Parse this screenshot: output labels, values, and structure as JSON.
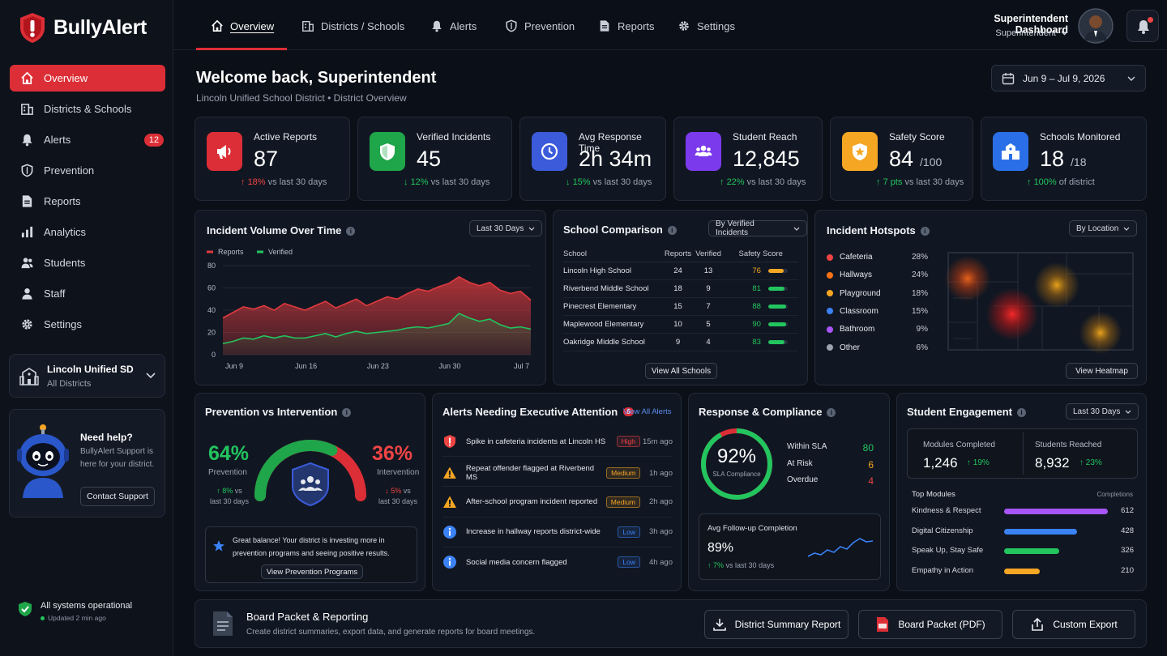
{
  "app": {
    "name": "BullyAlert"
  },
  "sidebar": {
    "items": [
      {
        "label": "Overview",
        "icon": "home-icon"
      },
      {
        "label": "Districts & Schools",
        "icon": "building-icon"
      },
      {
        "label": "Alerts",
        "icon": "bell-icon",
        "badge": "12"
      },
      {
        "label": "Prevention",
        "icon": "shield-icon"
      },
      {
        "label": "Reports",
        "icon": "document-icon"
      },
      {
        "label": "Analytics",
        "icon": "bar-chart-icon"
      },
      {
        "label": "Students",
        "icon": "users-icon"
      },
      {
        "label": "Staff",
        "icon": "user-icon"
      },
      {
        "label": "Settings",
        "icon": "gear-icon"
      }
    ],
    "district": {
      "name": "Lincoln Unified SD",
      "sub": "All Districts"
    },
    "help": {
      "title": "Need help?",
      "text1": "BullyAlert Support is",
      "text2": "here for your district.",
      "button": "Contact Support"
    },
    "status": {
      "text": "All systems operational",
      "updated": "Updated 2 min ago"
    }
  },
  "topnav": {
    "tabs": [
      {
        "label": "Overview",
        "icon": "home-icon"
      },
      {
        "label": "Districts / Schools",
        "icon": "building-icon"
      },
      {
        "label": "Alerts",
        "icon": "bell-icon"
      },
      {
        "label": "Prevention",
        "icon": "shield-icon"
      },
      {
        "label": "Reports",
        "icon": "document-icon"
      },
      {
        "label": "Settings",
        "icon": "gear-icon"
      }
    ],
    "user_title": "Superintendent Dashboard",
    "user_role": "Superintendent"
  },
  "header": {
    "title": "Welcome back, Superintendent",
    "subtitle": "Lincoln Unified School District • District Overview",
    "date_range": "Jun 9 – Jul 9, 2026"
  },
  "kpis": [
    {
      "label": "Active Reports",
      "value": "87",
      "suffix": "",
      "change": "18%",
      "dir": "up",
      "note": "vs last 30 days",
      "color": "#dc2e36"
    },
    {
      "label": "Verified Incidents",
      "value": "45",
      "suffix": "",
      "change": "12%",
      "dir": "down",
      "note": "vs last 30 days",
      "color": "#1fa64a"
    },
    {
      "label": "Avg Response Time",
      "value": "2h 34m",
      "suffix": "",
      "change": "15%",
      "dir": "down",
      "note": "vs last 30 days",
      "color": "#3b5bdb"
    },
    {
      "label": "Student Reach",
      "value": "12,845",
      "suffix": "",
      "change": "22%",
      "dir": "up",
      "note": "vs last 30 days",
      "color": "#7c3aed"
    },
    {
      "label": "Safety Score",
      "value": "84",
      "suffix": "/100",
      "change": "7 pts",
      "dir": "up",
      "note": "vs last 30 days",
      "color": "#f5a623"
    },
    {
      "label": "Schools Monitored",
      "value": "18",
      "suffix": "/18",
      "change": "100%",
      "dir": "up",
      "note": "of district",
      "color": "#2b6fe8"
    }
  ],
  "incident_volume": {
    "title": "Incident Volume Over Time",
    "range": "Last 30 Days"
  },
  "chart_data": {
    "type": "area",
    "x": [
      "Jun 9",
      "Jun 10",
      "Jun 11",
      "Jun 12",
      "Jun 13",
      "Jun 14",
      "Jun 15",
      "Jun 16",
      "Jun 17",
      "Jun 18",
      "Jun 19",
      "Jun 20",
      "Jun 21",
      "Jun 22",
      "Jun 23",
      "Jun 24",
      "Jun 25",
      "Jun 26",
      "Jun 27",
      "Jun 28",
      "Jun 29",
      "Jun 30",
      "Jul 1",
      "Jul 2",
      "Jul 3",
      "Jul 4",
      "Jul 5",
      "Jul 6",
      "Jul 7",
      "Jul 8",
      "Jul 9"
    ],
    "xticks": [
      "Jun 9",
      "Jun 16",
      "Jun 23",
      "Jun 30",
      "Jul 7"
    ],
    "series": [
      {
        "name": "Reports",
        "color": "#e03a3e",
        "values": [
          33,
          38,
          43,
          41,
          44,
          40,
          46,
          43,
          40,
          44,
          48,
          42,
          46,
          50,
          44,
          48,
          52,
          50,
          55,
          59,
          57,
          61,
          64,
          70,
          65,
          62,
          65,
          58,
          55,
          57,
          49
        ]
      },
      {
        "name": "Verified",
        "color": "#22c55e",
        "values": [
          10,
          12,
          15,
          14,
          17,
          15,
          17,
          15,
          15,
          17,
          19,
          16,
          19,
          21,
          19,
          20,
          21,
          22,
          24,
          25,
          24,
          26,
          28,
          37,
          33,
          30,
          32,
          27,
          24,
          25,
          23
        ]
      }
    ],
    "yticks": [
      0,
      20,
      40,
      60,
      80
    ],
    "ylim": [
      0,
      80
    ]
  },
  "school_comparison": {
    "title": "School Comparison",
    "filter": "By Verified Incidents",
    "headers": [
      "School",
      "Reports",
      "Verified",
      "Safety Score"
    ],
    "rows": [
      {
        "school": "Lincoln High School",
        "reports": "24",
        "verified": "13",
        "score": "76",
        "color": "#f5a623"
      },
      {
        "school": "Riverbend Middle School",
        "reports": "18",
        "verified": "9",
        "score": "81",
        "color": "#22c55e"
      },
      {
        "school": "Pinecrest Elementary",
        "reports": "15",
        "verified": "7",
        "score": "88",
        "color": "#22c55e"
      },
      {
        "school": "Maplewood Elementary",
        "reports": "10",
        "verified": "5",
        "score": "90",
        "color": "#22c55e"
      },
      {
        "school": "Oakridge Middle School",
        "reports": "9",
        "verified": "4",
        "score": "83",
        "color": "#22c55e"
      }
    ],
    "button": "View All Schools"
  },
  "hotspots": {
    "title": "Incident Hotspots",
    "filter": "By Location",
    "items": [
      {
        "label": "Cafeteria",
        "pct": "28%",
        "color": "#ef4444"
      },
      {
        "label": "Hallways",
        "pct": "24%",
        "color": "#f97316"
      },
      {
        "label": "Playground",
        "pct": "18%",
        "color": "#f5a623"
      },
      {
        "label": "Classroom",
        "pct": "15%",
        "color": "#3b82f6"
      },
      {
        "label": "Bathroom",
        "pct": "9%",
        "color": "#a855f7"
      },
      {
        "label": "Other",
        "pct": "6%",
        "color": "#9ca3af"
      }
    ],
    "button": "View Heatmap"
  },
  "prevention": {
    "title": "Prevention vs Intervention",
    "left_value": "64%",
    "left_label": "Prevention",
    "left_change": "8%",
    "left_fraction": 0.64,
    "right_value": "36%",
    "right_label": "Intervention",
    "right_change": "5%",
    "vs1": "vs",
    "vs2": "last 30 days",
    "message": "Great balance! Your district is investing more in prevention programs and seeing positive results.",
    "button": "View Prevention Programs"
  },
  "alerts": {
    "title": "Alerts Needing Executive Attention",
    "count": "5",
    "link": "View All Alerts",
    "items": [
      {
        "text": "Spike in cafeteria incidents at Lincoln HS",
        "level": "High",
        "time": "15m ago",
        "icon": "alert-shield-icon",
        "color": "#ef4444"
      },
      {
        "text": "Repeat offender flagged at Riverbend MS",
        "level": "Medium",
        "time": "1h ago",
        "icon": "warning-icon",
        "color": "#f5a623"
      },
      {
        "text": "After-school program incident reported",
        "level": "Medium",
        "time": "2h ago",
        "icon": "warning-icon",
        "color": "#f5a623"
      },
      {
        "text": "Increase in hallway reports district-wide",
        "level": "Low",
        "time": "3h ago",
        "icon": "info-icon",
        "color": "#3b82f6"
      },
      {
        "text": "Social media concern flagged",
        "level": "Low",
        "time": "4h ago",
        "icon": "info-icon",
        "color": "#3b82f6"
      }
    ]
  },
  "compliance": {
    "title": "Response & Compliance",
    "value": "92%",
    "label": "SLA Compliance",
    "fraction": 0.92,
    "stats": [
      {
        "label": "Within SLA",
        "value": "80",
        "color": "#22c55e"
      },
      {
        "label": "At Risk",
        "value": "6",
        "color": "#f5a623"
      },
      {
        "label": "Overdue",
        "value": "4",
        "color": "#ef4444"
      }
    ],
    "followup_label": "Avg Follow-up Completion",
    "followup_value": "89%",
    "followup_change": "7%",
    "followup_note": "vs last 30 days"
  },
  "engagement": {
    "title": "Student Engagement",
    "range": "Last 30 Days",
    "modules_label": "Modules Completed",
    "modules_value": "1,246",
    "modules_change": "19%",
    "students_label": "Students Reached",
    "students_value": "8,932",
    "students_change": "23%",
    "top_label": "Top Modules",
    "completions_label": "Completions",
    "modules": [
      {
        "label": "Kindness & Respect",
        "value": 612,
        "color": "#a855f7"
      },
      {
        "label": "Digital Citizenship",
        "value": 428,
        "color": "#3b82f6"
      },
      {
        "label": "Speak Up, Stay Safe",
        "value": 326,
        "color": "#22c55e"
      },
      {
        "label": "Empathy in Action",
        "value": 210,
        "color": "#f5a623"
      }
    ]
  },
  "board": {
    "title": "Board Packet & Reporting",
    "subtitle": "Create district summaries, export data, and generate reports for board meetings.",
    "buttons": [
      {
        "label": "District Summary Report",
        "icon": "download-icon"
      },
      {
        "label": "Board Packet (PDF)",
        "icon": "pdf-icon"
      },
      {
        "label": "Custom Export",
        "icon": "export-icon"
      }
    ]
  }
}
